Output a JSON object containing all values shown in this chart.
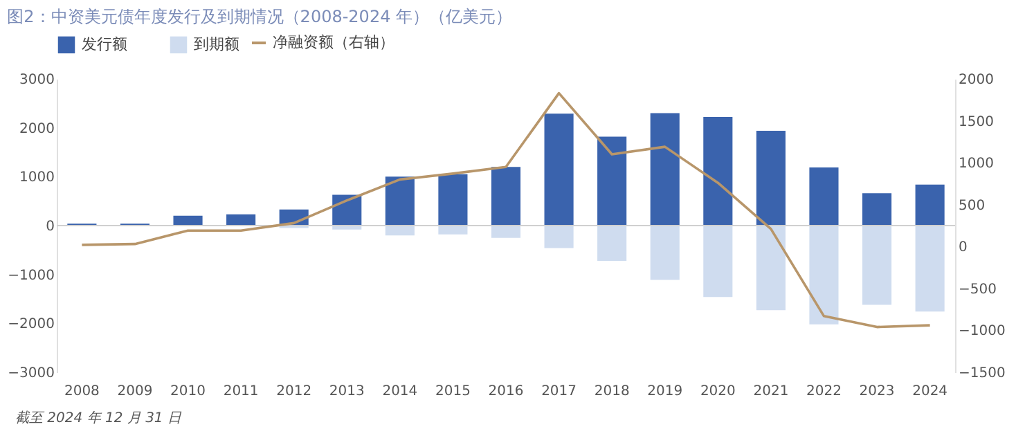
{
  "chart_data": {
    "type": "bar",
    "stacked": true,
    "title": "图2：中资美元债年度发行及到期情况（2008-2024 年）（亿美元）",
    "legend": "top",
    "categories": [
      "2008",
      "2009",
      "2010",
      "2011",
      "2012",
      "2013",
      "2014",
      "2015",
      "2016",
      "2017",
      "2018",
      "2019",
      "2020",
      "2021",
      "2022",
      "2023",
      "2024"
    ],
    "series": [
      {
        "name": "发行额",
        "color": "#3a63ad",
        "values": [
          40,
          40,
          200,
          230,
          330,
          630,
          1000,
          1050,
          1200,
          2290,
          1820,
          2300,
          2220,
          1940,
          1190,
          660,
          840
        ]
      },
      {
        "name": "到期额",
        "color": "#cfdcef",
        "values": [
          null,
          -10,
          -10,
          null,
          -50,
          -80,
          -200,
          -180,
          -250,
          -460,
          -720,
          -1110,
          -1460,
          -1730,
          -2020,
          -1620,
          -1760
        ]
      },
      {
        "name": "净融资额（右轴）",
        "type": "line",
        "axis": "y2",
        "color": "#b8966a",
        "values": [
          20,
          30,
          190,
          190,
          280,
          550,
          800,
          870,
          950,
          1830,
          1100,
          1190,
          760,
          210,
          -830,
          -960,
          -940
        ]
      }
    ],
    "ylim": [
      -3000,
      3000
    ],
    "yticks": [
      -3000,
      -2000,
      -1000,
      0,
      1000,
      2000,
      3000
    ],
    "y2lim": [
      -1500,
      2000
    ],
    "y2ticks": [
      -1500,
      -1000,
      -500,
      0,
      500,
      1000,
      1500,
      2000
    ],
    "annotations": [
      "截至 2024 年 12 月 31 日"
    ]
  }
}
